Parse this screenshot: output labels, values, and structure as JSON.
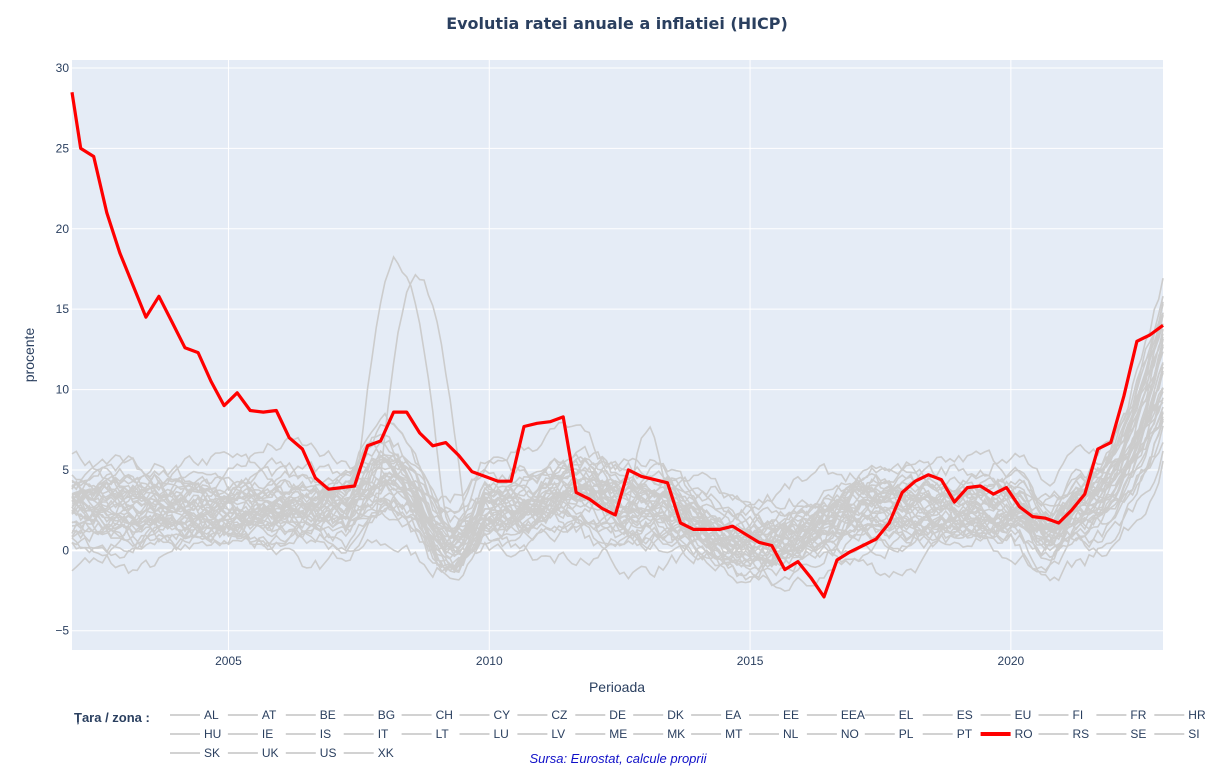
{
  "chart_data": {
    "type": "line",
    "title": "Evolutia ratei anuale a inflatiei (HICP)",
    "xlabel": "Perioada",
    "ylabel": "procente",
    "x_ticks": [
      "2005",
      "2010",
      "2015",
      "2020"
    ],
    "y_ticks": [
      "−5",
      "0",
      "5",
      "10",
      "15",
      "20",
      "25",
      "30"
    ],
    "xlim": [
      "2002-01",
      "2022-12"
    ],
    "ylim": [
      -6.2,
      30.5
    ],
    "grid": true,
    "highlight_color": "#ff0000",
    "background_color": "#cccccc",
    "plot_bg": "#e5ecf6",
    "legend_title": "Țara / zona :",
    "legend_position": "bottom",
    "source_note": "Sursa: Eurostat, calcule proprii",
    "series_names": [
      "AL",
      "AT",
      "BE",
      "BG",
      "CH",
      "CY",
      "CZ",
      "DE",
      "DK",
      "EA",
      "EE",
      "EEA",
      "EL",
      "ES",
      "EU",
      "FI",
      "FR",
      "HR",
      "HU",
      "IE",
      "IS",
      "IT",
      "LT",
      "LU",
      "LV",
      "ME",
      "MK",
      "MT",
      "NL",
      "NO",
      "PL",
      "PT",
      "RO",
      "RS",
      "SE",
      "SI",
      "SK",
      "UK",
      "US",
      "XK"
    ],
    "highlight_series": {
      "name": "RO",
      "points": [
        [
          "2002-01",
          28.5
        ],
        [
          "2002-03",
          25
        ],
        [
          "2002-06",
          24.5
        ],
        [
          "2002-09",
          21
        ],
        [
          "2002-12",
          18.5
        ],
        [
          "2003-03",
          16.5
        ],
        [
          "2003-06",
          14.5
        ],
        [
          "2003-09",
          15.8
        ],
        [
          "2003-12",
          14.2
        ],
        [
          "2004-03",
          12.6
        ],
        [
          "2004-06",
          12.3
        ],
        [
          "2004-09",
          10.5
        ],
        [
          "2004-12",
          9.0
        ],
        [
          "2005-03",
          9.8
        ],
        [
          "2005-06",
          8.7
        ],
        [
          "2005-09",
          8.6
        ],
        [
          "2005-12",
          8.7
        ],
        [
          "2006-03",
          7.0
        ],
        [
          "2006-06",
          6.3
        ],
        [
          "2006-09",
          4.5
        ],
        [
          "2006-12",
          3.8
        ],
        [
          "2007-03",
          3.9
        ],
        [
          "2007-06",
          4.0
        ],
        [
          "2007-09",
          6.5
        ],
        [
          "2007-12",
          6.8
        ],
        [
          "2008-03",
          8.6
        ],
        [
          "2008-06",
          8.6
        ],
        [
          "2008-09",
          7.3
        ],
        [
          "2008-12",
          6.5
        ],
        [
          "2009-03",
          6.7
        ],
        [
          "2009-06",
          5.9
        ],
        [
          "2009-09",
          4.9
        ],
        [
          "2009-12",
          4.6
        ],
        [
          "2010-03",
          4.3
        ],
        [
          "2010-06",
          4.3
        ],
        [
          "2010-09",
          7.7
        ],
        [
          "2010-12",
          7.9
        ],
        [
          "2011-03",
          8.0
        ],
        [
          "2011-06",
          8.3
        ],
        [
          "2011-09",
          3.6
        ],
        [
          "2011-12",
          3.2
        ],
        [
          "2012-03",
          2.6
        ],
        [
          "2012-06",
          2.2
        ],
        [
          "2012-09",
          5.0
        ],
        [
          "2012-12",
          4.6
        ],
        [
          "2013-03",
          4.4
        ],
        [
          "2013-06",
          4.2
        ],
        [
          "2013-09",
          1.7
        ],
        [
          "2013-12",
          1.3
        ],
        [
          "2014-03",
          1.3
        ],
        [
          "2014-06",
          1.3
        ],
        [
          "2014-09",
          1.5
        ],
        [
          "2014-12",
          1.0
        ],
        [
          "2015-03",
          0.5
        ],
        [
          "2015-06",
          0.3
        ],
        [
          "2015-09",
          -1.2
        ],
        [
          "2015-12",
          -0.7
        ],
        [
          "2016-03",
          -1.7
        ],
        [
          "2016-06",
          -2.9
        ],
        [
          "2016-09",
          -0.6
        ],
        [
          "2016-12",
          -0.1
        ],
        [
          "2017-03",
          0.3
        ],
        [
          "2017-06",
          0.7
        ],
        [
          "2017-09",
          1.7
        ],
        [
          "2017-12",
          3.6
        ],
        [
          "2018-03",
          4.3
        ],
        [
          "2018-06",
          4.7
        ],
        [
          "2018-09",
          4.4
        ],
        [
          "2018-12",
          3.0
        ],
        [
          "2019-03",
          3.9
        ],
        [
          "2019-06",
          4.0
        ],
        [
          "2019-09",
          3.5
        ],
        [
          "2019-12",
          3.9
        ],
        [
          "2020-03",
          2.7
        ],
        [
          "2020-06",
          2.1
        ],
        [
          "2020-09",
          2.0
        ],
        [
          "2020-12",
          1.7
        ],
        [
          "2021-03",
          2.5
        ],
        [
          "2021-06",
          3.5
        ],
        [
          "2021-09",
          6.3
        ],
        [
          "2021-12",
          6.7
        ],
        [
          "2022-03",
          9.6
        ],
        [
          "2022-06",
          13.0
        ],
        [
          "2022-09",
          13.4
        ],
        [
          "2022-12",
          14.0
        ]
      ]
    }
  }
}
